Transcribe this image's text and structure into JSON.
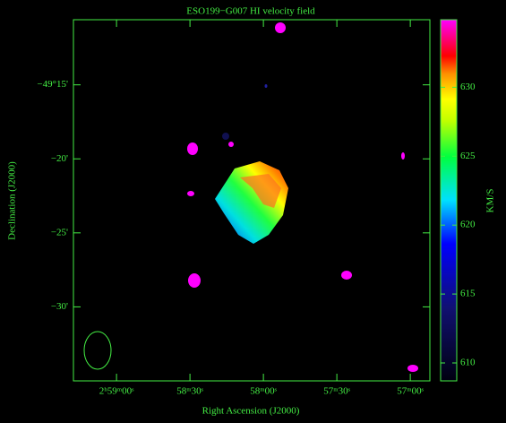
{
  "chart_data": {
    "type": "image",
    "title": "ESO199−G007  HI velocity field",
    "xlabel": "Right Ascension (J2000)",
    "ylabel": "Declination (J2000)",
    "xlim": [
      137.6,
      -8.0
    ],
    "xticks": [
      {
        "value": 120,
        "label": "2ʰ59ᵐ00ˢ"
      },
      {
        "value": 90,
        "label": "58ᵐ30ˢ"
      },
      {
        "value": 60,
        "label": "58ᵐ00ˢ"
      },
      {
        "value": 30,
        "label": "57ᵐ30ˢ"
      },
      {
        "value": 0,
        "label": "57ᵐ00ˢ"
      }
    ],
    "ylim": [
      -35.0,
      -10.6
    ],
    "yticks": [
      {
        "value": -15,
        "label": "−49°15'"
      },
      {
        "value": -20,
        "label": "−20'"
      },
      {
        "value": -25,
        "label": "−25'"
      },
      {
        "value": -30,
        "label": "−30'"
      }
    ],
    "colorbar": {
      "label": "KM/S",
      "lim": [
        608.7,
        634.9
      ],
      "ticks": [
        610,
        615,
        620,
        625,
        630
      ]
    },
    "color": "#44ee44"
  }
}
